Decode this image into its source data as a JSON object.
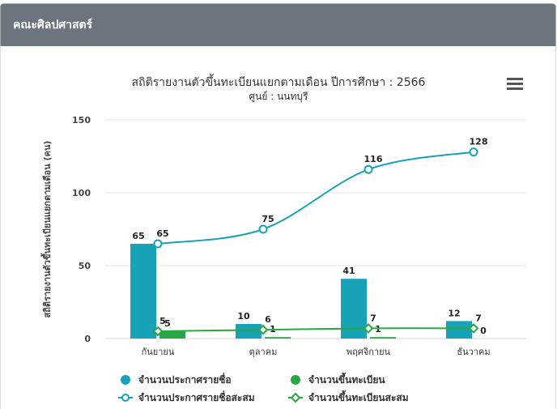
{
  "header": {
    "title": "คณะศิลปศาสตร์"
  },
  "chart_data": {
    "type": "bar",
    "title": "สถิติรายงานตัวขึ้นทะเบียนแยกตามเดือน ปีการศึกษา : 2566",
    "subtitle": "ศูนย์ : นนทบุรี",
    "y_label": "สถิติรายงานตัวขึ้นทะเบียนแยกตามเดือน (คน)",
    "categories": [
      "กันยายน",
      "ตุลาคม",
      "พฤศจิกายน",
      "ธันวาคม"
    ],
    "series": [
      {
        "name": "จำนวนประกาศรายชื่อ",
        "type": "bar",
        "color": "#17a2b8",
        "values": [
          65,
          10,
          41,
          12
        ]
      },
      {
        "name": "จำนวนขึ้นทะเบียน",
        "type": "bar",
        "color": "#28a745",
        "values": [
          5,
          1,
          1,
          0
        ]
      },
      {
        "name": "จำนวนประกาศรายชื่อสะสม",
        "type": "line",
        "color": "#17a2b8",
        "values": [
          65,
          75,
          116,
          128
        ]
      },
      {
        "name": "จำนวนขึ้นทะเบียนสะสม",
        "type": "line",
        "color": "#28a745",
        "values": [
          5,
          6,
          7,
          7
        ]
      }
    ],
    "ylim": [
      0,
      150
    ],
    "yticks": [
      0,
      50,
      100,
      150
    ],
    "grid": true,
    "legend": "bottom"
  }
}
